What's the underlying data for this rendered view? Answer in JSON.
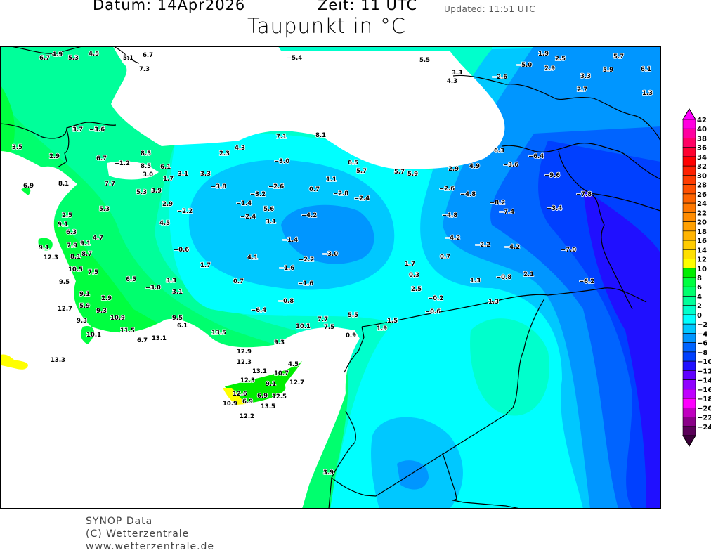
{
  "header": {
    "date": "Datum: 14Apr2026",
    "time": "Zeit: 11  UTC",
    "updated": "Updated: 11:51 UTC",
    "title": "Taupunkt in °C"
  },
  "footer": {
    "line1": "SYNOP Data",
    "line2": "(C) Wetterzentrale",
    "line3": "www.wetterzentrale.de"
  },
  "legend": {
    "labels": [
      "42",
      "40",
      "38",
      "36",
      "34",
      "32",
      "30",
      "28",
      "26",
      "24",
      "22",
      "20",
      "18",
      "16",
      "14",
      "12",
      "10",
      "8",
      "6",
      "4",
      "2",
      "0",
      "−2",
      "−4",
      "−6",
      "−8",
      "−10",
      "−12",
      "−14",
      "−16",
      "−18",
      "−20",
      "−22",
      "−24"
    ],
    "colors_top_to_bottom": [
      "#ff00e0",
      "#ff00a0",
      "#ff0064",
      "#ff0030",
      "#ff0000",
      "#ff2000",
      "#ff3c00",
      "#ff5000",
      "#ff6400",
      "#ff7800",
      "#ff8c00",
      "#ffa000",
      "#ffb400",
      "#ffcc00",
      "#ffe000",
      "#ffff00",
      "#00ee00",
      "#00ff40",
      "#00ff6e",
      "#00ff9a",
      "#00ffcc",
      "#00ffff",
      "#00c8ff",
      "#0096ff",
      "#0064ff",
      "#0040ff",
      "#2010ff",
      "#6000ff",
      "#9000ff",
      "#c000ff",
      "#ff00ff",
      "#c000c0",
      "#8a0088",
      "#5a0058"
    ],
    "arrow_top_color": "#ff00ff",
    "arrow_bottom_color": "#3a0038"
  },
  "map": {
    "sea_color": "#ffffff",
    "border_color": "#000000",
    "stations": [
      "6.7",
      "4.9",
      "5.3",
      "4.5",
      "5.1",
      "6.7",
      "7.3",
      "−5.4",
      "3.7",
      "−3.6",
      "3.5",
      "2.9",
      "6.7",
      "8.5",
      "8.5",
      "−1.2",
      "3.0",
      "6.1",
      "1.7",
      "3.1",
      "3.3",
      "−3.8",
      "6.9",
      "8.1",
      "7.7",
      "5.3",
      "3.9",
      "2.9",
      "2.3",
      "4.3",
      "7.1",
      "8.1",
      "−3.0",
      "6.5",
      "5.7",
      "5.7",
      "5.9",
      "2.9",
      "4.9",
      "6.3",
      "−3.6",
      "−6.4",
      "−9.6",
      "−7.8",
      "−3.4",
      "−8.2",
      "−7.4",
      "−4.8",
      "−2.6",
      "−4.8",
      "−4.2",
      "−2.2",
      "−4.2",
      "−7.0",
      "0.7",
      "1.7",
      "0.3",
      "1.3",
      "−0.8",
      "2.1",
      "−6.2",
      "2.5",
      "−0.2",
      "−0.6",
      "1.3",
      "5.5",
      "3.3",
      "4.3",
      "−2.6",
      "−5.0",
      "2.9",
      "2.5",
      "3.3",
      "2.7",
      "5.9",
      "5.7",
      "6.1",
      "1.3",
      "1.9",
      "−2.6",
      "0.7",
      "1.1",
      "−2.8",
      "−2.4",
      "−1.4",
      "−3.2",
      "−2.4",
      "5.6",
      "3.1",
      "−4.2",
      "−2.2",
      "4.5",
      "−0.6",
      "4.1",
      "−1.4",
      "−3.0",
      "−2.2",
      "−1.6",
      "1.7",
      "0.7",
      "−1.6",
      "3.3",
      "3.1",
      "−3.0",
      "−0.8",
      "−6.4",
      "7.7",
      "7.5",
      "5.5",
      "10.1",
      "1.9",
      "1.5",
      "0.9",
      "13.5",
      "9.3",
      "12.9",
      "12.3",
      "10.7",
      "4.5",
      "12.3",
      "13.1",
      "12.6",
      "6.9",
      "9.1",
      "12.7",
      "6.9",
      "12.5",
      "13.5",
      "10.9",
      "12.2",
      "3.9",
      "5.3",
      "2.5",
      "9.1",
      "6.3",
      "4.7",
      "9.1",
      "7.9",
      "8.1",
      "8.7",
      "9.1",
      "12.3",
      "10.5",
      "7.5",
      "9.5",
      "6.5",
      "9.1",
      "5.9",
      "2.9",
      "12.7",
      "9.3",
      "9.3",
      "10.9",
      "11.5",
      "10.1",
      "9.5",
      "6.1",
      "6.7",
      "13.1",
      "13.3"
    ]
  }
}
